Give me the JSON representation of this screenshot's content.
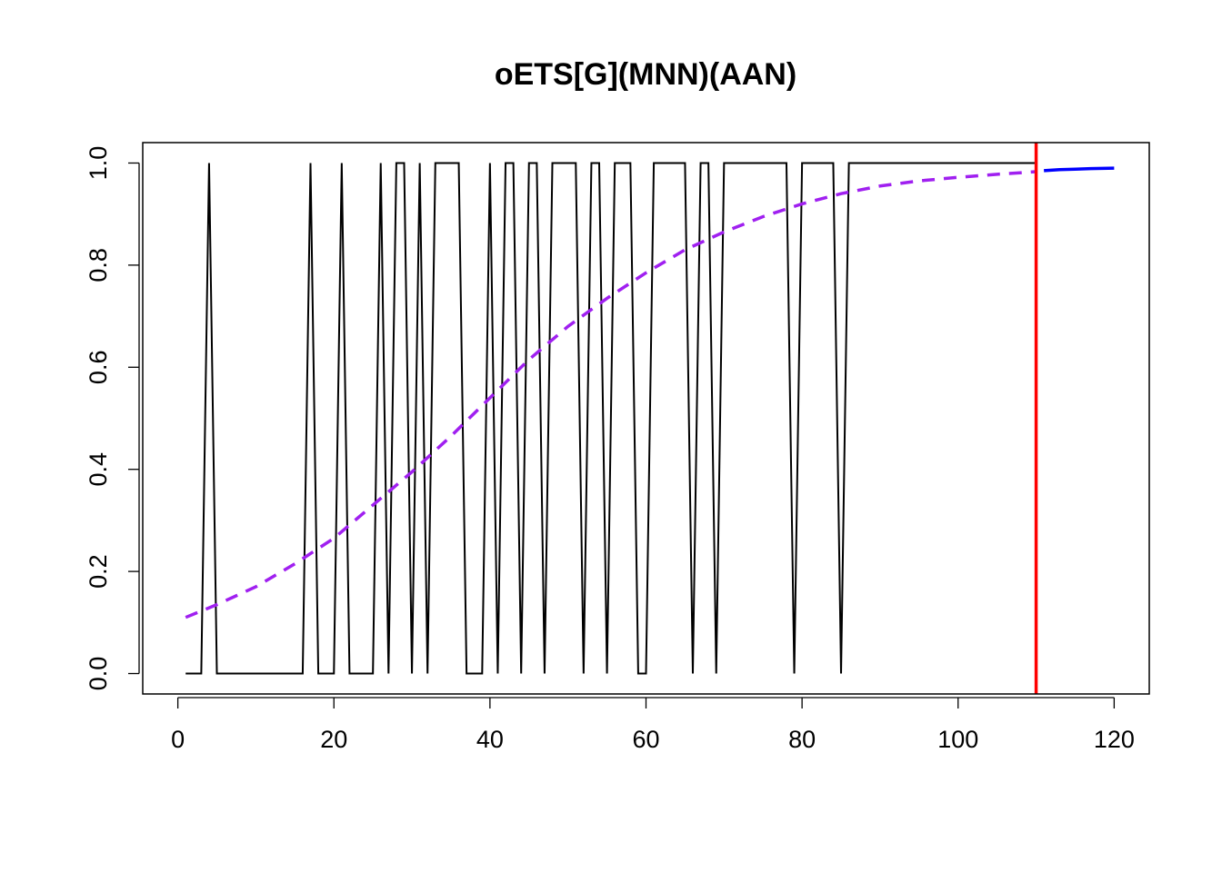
{
  "chart_data": {
    "type": "line",
    "title": "oETS[G](MNN)(AAN)",
    "xlabel": "",
    "ylabel": "",
    "xlim": [
      -4.5,
      124.5
    ],
    "ylim": [
      -0.04,
      1.04
    ],
    "x_ticks": [
      0,
      20,
      40,
      60,
      80,
      100,
      120
    ],
    "y_ticks": [
      0.0,
      0.2,
      0.4,
      0.6,
      0.8,
      1.0
    ],
    "x_tick_labels": [
      "0",
      "20",
      "40",
      "60",
      "80",
      "100",
      "120"
    ],
    "y_tick_labels": [
      "0.0",
      "0.2",
      "0.4",
      "0.6",
      "0.8",
      "1.0"
    ],
    "grid": false,
    "legend": "none",
    "series": [
      {
        "role": "actuals",
        "color": "#000000",
        "style": "solid",
        "x_start": 1,
        "values": [
          0,
          0,
          0,
          1,
          0,
          0,
          0,
          0,
          0,
          0,
          0,
          0,
          0,
          0,
          0,
          0,
          1,
          0,
          0,
          0,
          1,
          0,
          0,
          0,
          0,
          1,
          0,
          1,
          1,
          0,
          1,
          0,
          1,
          1,
          1,
          1,
          0,
          0,
          0,
          1,
          0,
          1,
          1,
          0,
          1,
          1,
          0,
          1,
          1,
          1,
          1,
          0,
          1,
          1,
          0,
          1,
          1,
          1,
          0,
          0,
          1,
          1,
          1,
          1,
          1,
          0,
          1,
          1,
          0,
          1,
          1,
          1,
          1,
          1,
          1,
          1,
          1,
          1,
          0,
          1,
          1,
          1,
          1,
          1,
          0,
          1,
          1,
          1,
          1,
          1,
          1,
          1,
          1,
          1,
          1,
          1,
          1,
          1,
          1,
          1,
          1,
          1,
          1,
          1,
          1,
          1,
          1,
          1,
          1,
          1
        ]
      },
      {
        "role": "fitted",
        "color": "#A020F0",
        "style": "dashed",
        "x": [
          1,
          5,
          10,
          15,
          20,
          25,
          30,
          35,
          40,
          45,
          50,
          55,
          60,
          65,
          70,
          75,
          80,
          85,
          90,
          95,
          100,
          105,
          110
        ],
        "values": [
          0.11,
          0.135,
          0.17,
          0.215,
          0.265,
          0.33,
          0.395,
          0.465,
          0.54,
          0.615,
          0.68,
          0.735,
          0.785,
          0.83,
          0.865,
          0.895,
          0.92,
          0.94,
          0.955,
          0.965,
          0.972,
          0.978,
          0.983
        ]
      },
      {
        "role": "forecast",
        "color": "#0000FF",
        "style": "solid",
        "x": [
          111,
          113,
          115,
          117,
          120
        ],
        "values": [
          0.985,
          0.987,
          0.988,
          0.989,
          0.99
        ]
      }
    ],
    "vline": {
      "x": 110,
      "color": "#FF0000"
    }
  }
}
